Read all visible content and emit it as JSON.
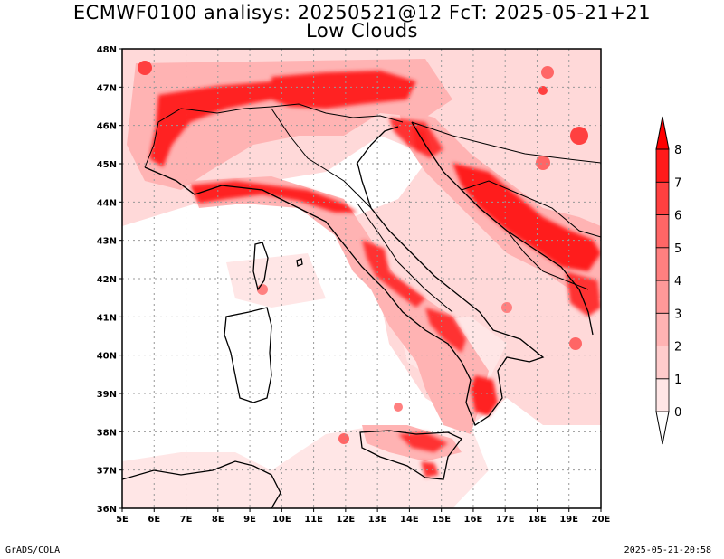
{
  "title": "ECMWF0100 analisys: 20250521@12 FcT: 2025-05-21+21",
  "subtitle": "Low Clouds",
  "footer_left": "GrADS/COLA",
  "footer_right": "2025-05-21-20:58",
  "map": {
    "lon_range": [
      5,
      20
    ],
    "lat_range": [
      36,
      48
    ],
    "lon_ticks": [
      "5E",
      "6E",
      "7E",
      "8E",
      "9E",
      "10E",
      "11E",
      "12E",
      "13E",
      "14E",
      "15E",
      "16E",
      "17E",
      "18E",
      "19E",
      "20E"
    ],
    "lat_ticks": [
      "36N",
      "37N",
      "38N",
      "39N",
      "40N",
      "41N",
      "42N",
      "43N",
      "44N",
      "45N",
      "46N",
      "47N",
      "48N"
    ],
    "grid": true
  },
  "colorbar": {
    "labels": [
      "0",
      "1",
      "2",
      "3",
      "4",
      "5",
      "6",
      "7",
      "8"
    ],
    "colors": [
      "#ffe6e6",
      "#ffcccc",
      "#ffb3b3",
      "#ff9999",
      "#ff8080",
      "#ff6666",
      "#ff4040",
      "#ff1a1a"
    ],
    "arrow_color": "#ff0000",
    "extends": "both"
  },
  "chart_data": {
    "type": "heatmap",
    "title": "ECMWF0100 analisys: 20250521@12 FcT: 2025-05-21+21",
    "subtitle": "Low Clouds",
    "x_range": [
      5,
      20
    ],
    "y_range": [
      36,
      48
    ],
    "levels": [
      0,
      1,
      2,
      3,
      4,
      5,
      6,
      7,
      8
    ],
    "cloud_regions": [
      {
        "lon": 8.5,
        "lat": 46.6,
        "level": 7
      },
      {
        "lon": 11.0,
        "lat": 46.8,
        "level": 7
      },
      {
        "lon": 13.5,
        "lat": 46.7,
        "level": 7
      },
      {
        "lon": 7.3,
        "lat": 45.3,
        "level": 6
      },
      {
        "lon": 8.5,
        "lat": 44.3,
        "level": 7
      },
      {
        "lon": 10.5,
        "lat": 44.1,
        "level": 7
      },
      {
        "lon": 13.0,
        "lat": 42.6,
        "level": 6
      },
      {
        "lon": 14.3,
        "lat": 41.7,
        "level": 6
      },
      {
        "lon": 15.8,
        "lat": 40.6,
        "level": 6
      },
      {
        "lon": 16.3,
        "lat": 39.2,
        "level": 7
      },
      {
        "lon": 15.0,
        "lat": 37.9,
        "level": 7
      },
      {
        "lon": 15.0,
        "lat": 45.9,
        "level": 7
      },
      {
        "lon": 17.0,
        "lat": 44.6,
        "level": 7
      },
      {
        "lon": 18.6,
        "lat": 43.3,
        "level": 8
      },
      {
        "lon": 19.5,
        "lat": 42.2,
        "level": 6
      }
    ]
  }
}
